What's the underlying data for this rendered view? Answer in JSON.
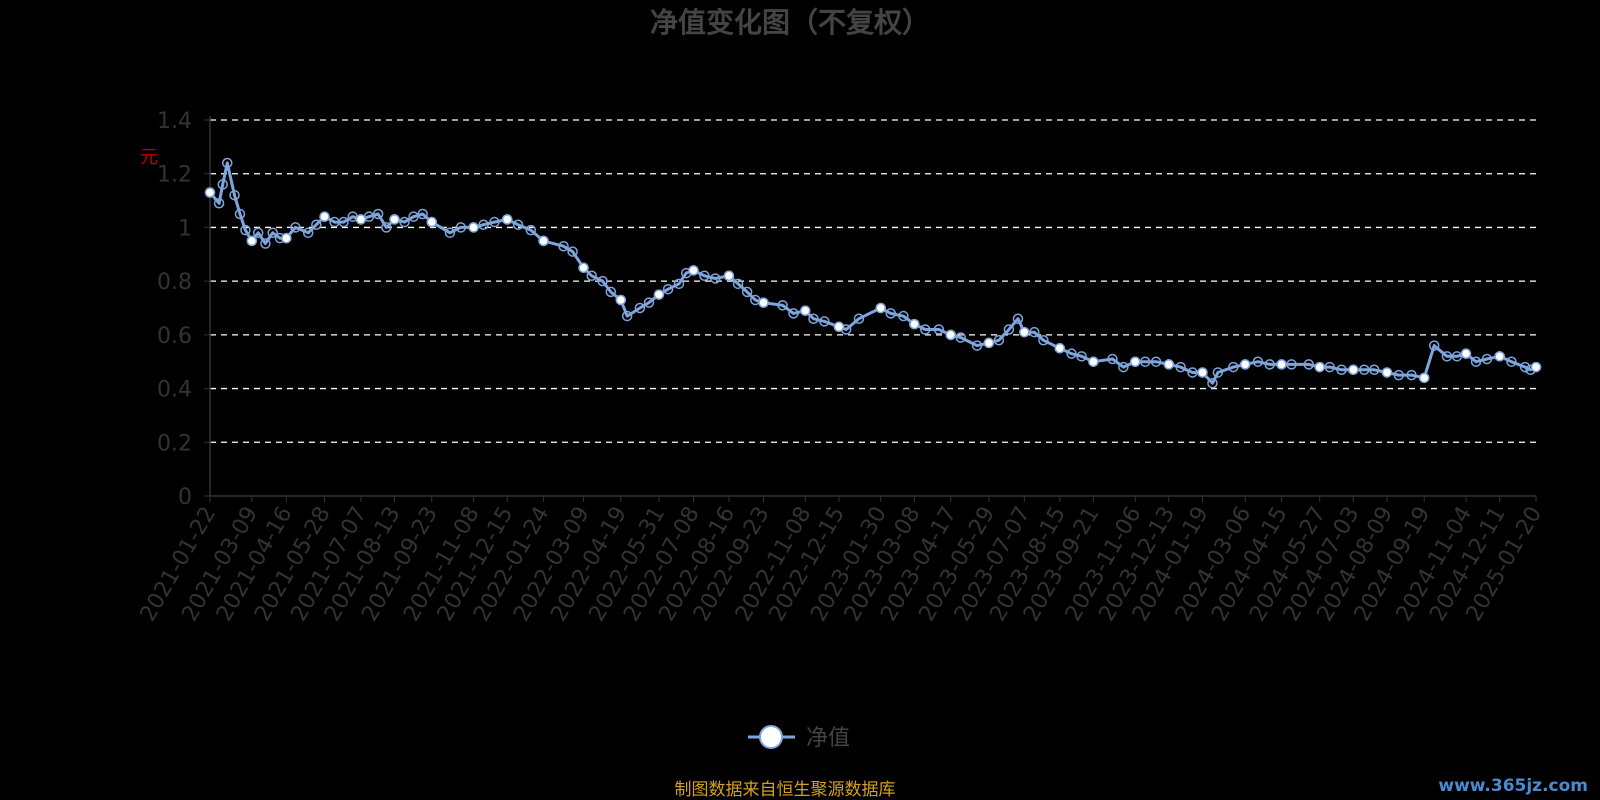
{
  "chart_data": {
    "type": "line",
    "title": "净值变化图（不复权）",
    "ylabel": "元",
    "ylim": [
      0,
      1.4
    ],
    "yticks": [
      "0",
      "0.2",
      "0.4",
      "0.6",
      "0.8",
      "1",
      "1.2",
      "1.4"
    ],
    "grid": true,
    "legend_position": "bottom-center",
    "x_tick_labels": [
      "2021-01-22",
      "2021-03-09",
      "2021-04-16",
      "2021-05-28",
      "2021-07-07",
      "2021-08-13",
      "2021-09-23",
      "2021-11-08",
      "2021-12-15",
      "2022-01-24",
      "2022-03-09",
      "2022-04-19",
      "2022-05-31",
      "2022-07-08",
      "2022-08-16",
      "2022-09-23",
      "2022-11-08",
      "2022-12-15",
      "2023-01-30",
      "2023-03-08",
      "2023-04-17",
      "2023-05-29",
      "2023-07-07",
      "2023-08-15",
      "2023-09-21",
      "2023-11-06",
      "2023-12-13",
      "2024-01-19",
      "2024-03-06",
      "2024-04-15",
      "2024-05-27",
      "2024-07-03",
      "2024-08-09",
      "2024-09-19",
      "2024-11-04",
      "2024-12-11",
      "2025-01-20"
    ],
    "series": [
      {
        "name": "净值",
        "color": "#7ea6dc",
        "x": [
          "2021-01-22",
          "2021-02-01",
          "2021-02-05",
          "2021-02-10",
          "2021-02-18",
          "2021-02-24",
          "2021-03-02",
          "2021-03-09",
          "2021-03-16",
          "2021-03-24",
          "2021-04-01",
          "2021-04-09",
          "2021-04-16",
          "2021-04-26",
          "2021-05-10",
          "2021-05-19",
          "2021-05-28",
          "2021-06-08",
          "2021-06-18",
          "2021-06-28",
          "2021-07-07",
          "2021-07-16",
          "2021-07-26",
          "2021-08-04",
          "2021-08-13",
          "2021-08-24",
          "2021-09-03",
          "2021-09-13",
          "2021-09-23",
          "2021-10-13",
          "2021-10-25",
          "2021-11-08",
          "2021-11-19",
          "2021-12-01",
          "2021-12-15",
          "2021-12-27",
          "2022-01-10",
          "2022-01-24",
          "2022-02-15",
          "2022-02-25",
          "2022-03-09",
          "2022-03-18",
          "2022-03-30",
          "2022-04-08",
          "2022-04-19",
          "2022-04-26",
          "2022-05-10",
          "2022-05-20",
          "2022-05-31",
          "2022-06-10",
          "2022-06-22",
          "2022-06-30",
          "2022-07-08",
          "2022-07-20",
          "2022-08-01",
          "2022-08-16",
          "2022-08-26",
          "2022-09-05",
          "2022-09-14",
          "2022-09-23",
          "2022-10-14",
          "2022-10-26",
          "2022-11-08",
          "2022-11-17",
          "2022-11-29",
          "2022-12-15",
          "2022-12-23",
          "2023-01-06",
          "2023-01-30",
          "2023-02-10",
          "2023-02-24",
          "2023-03-08",
          "2023-03-20",
          "2023-04-04",
          "2023-04-17",
          "2023-04-28",
          "2023-05-16",
          "2023-05-29",
          "2023-06-09",
          "2023-06-20",
          "2023-06-30",
          "2023-07-07",
          "2023-07-18",
          "2023-07-28",
          "2023-08-15",
          "2023-08-28",
          "2023-09-08",
          "2023-09-21",
          "2023-10-12",
          "2023-10-24",
          "2023-11-06",
          "2023-11-17",
          "2023-11-29",
          "2023-12-13",
          "2023-12-26",
          "2024-01-08",
          "2024-01-19",
          "2024-01-30",
          "2024-02-05",
          "2024-02-22",
          "2024-03-06",
          "2024-03-20",
          "2024-04-02",
          "2024-04-15",
          "2024-04-26",
          "2024-05-15",
          "2024-05-27",
          "2024-06-07",
          "2024-06-20",
          "2024-07-03",
          "2024-07-15",
          "2024-07-26",
          "2024-08-09",
          "2024-08-22",
          "2024-09-05",
          "2024-09-19",
          "2024-09-30",
          "2024-10-14",
          "2024-10-25",
          "2024-11-04",
          "2024-11-15",
          "2024-11-27",
          "2024-12-11",
          "2024-12-24",
          "2025-01-08",
          "2025-01-14",
          "2025-01-20"
        ],
        "values": [
          1.13,
          1.09,
          1.16,
          1.24,
          1.12,
          1.05,
          0.99,
          0.95,
          0.98,
          0.94,
          0.98,
          0.96,
          0.96,
          1.0,
          0.98,
          1.01,
          1.04,
          1.02,
          1.02,
          1.04,
          1.03,
          1.04,
          1.05,
          1.0,
          1.03,
          1.02,
          1.04,
          1.05,
          1.02,
          0.98,
          1.0,
          1.0,
          1.01,
          1.02,
          1.03,
          1.01,
          0.99,
          0.95,
          0.93,
          0.91,
          0.85,
          0.82,
          0.8,
          0.76,
          0.73,
          0.67,
          0.7,
          0.72,
          0.75,
          0.77,
          0.79,
          0.83,
          0.84,
          0.82,
          0.81,
          0.82,
          0.79,
          0.76,
          0.73,
          0.72,
          0.71,
          0.68,
          0.69,
          0.66,
          0.65,
          0.63,
          0.62,
          0.66,
          0.7,
          0.68,
          0.67,
          0.64,
          0.62,
          0.62,
          0.6,
          0.59,
          0.56,
          0.57,
          0.58,
          0.62,
          0.66,
          0.61,
          0.61,
          0.58,
          0.55,
          0.53,
          0.52,
          0.5,
          0.51,
          0.48,
          0.5,
          0.5,
          0.5,
          0.49,
          0.48,
          0.46,
          0.46,
          0.42,
          0.46,
          0.48,
          0.49,
          0.5,
          0.49,
          0.49,
          0.49,
          0.49,
          0.48,
          0.48,
          0.47,
          0.47,
          0.47,
          0.47,
          0.46,
          0.45,
          0.45,
          0.44,
          0.56,
          0.52,
          0.52,
          0.53,
          0.5,
          0.51,
          0.52,
          0.5,
          0.48,
          0.47,
          0.48
        ]
      }
    ]
  },
  "source_note": "制图数据来自恒生聚源数据库",
  "watermark": "www.365jz.com"
}
